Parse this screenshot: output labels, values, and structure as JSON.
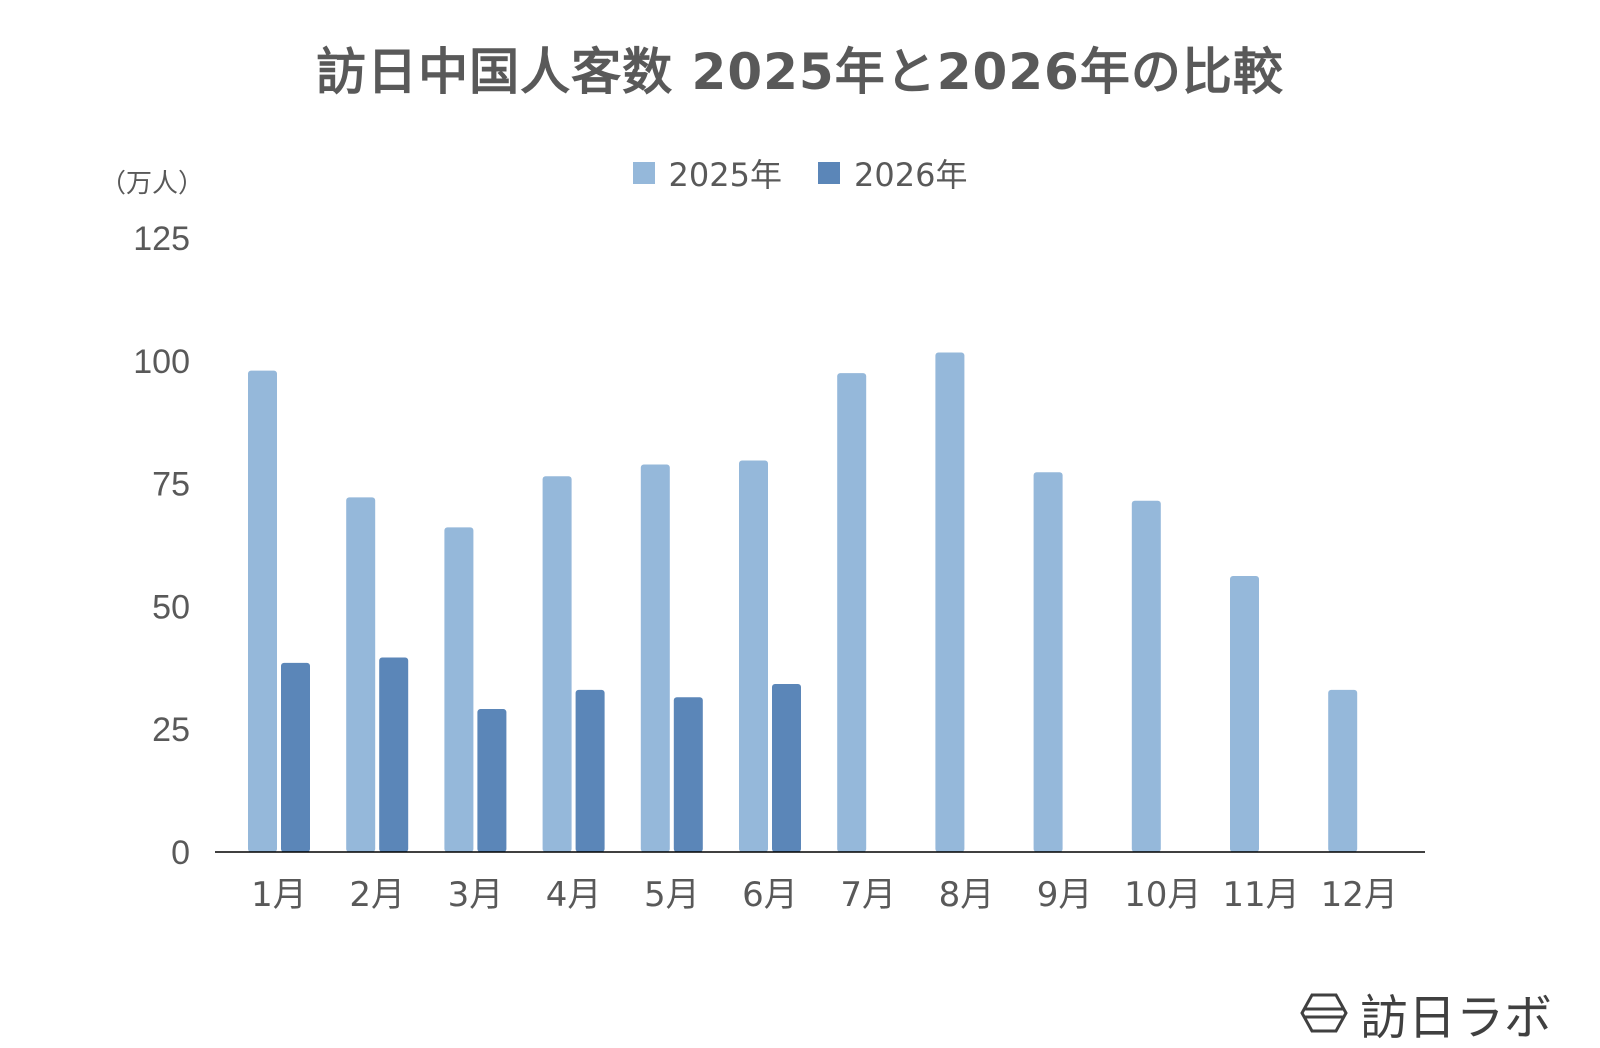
{
  "chart_data": {
    "type": "bar",
    "title": "訪日中国人客数 2025年と2026年の比較",
    "unit_label": "（万人）",
    "categories": [
      "1月",
      "2月",
      "3月",
      "4月",
      "5月",
      "6月",
      "7月",
      "8月",
      "9月",
      "10月",
      "11月",
      "12月"
    ],
    "series": [
      {
        "name": "2025年",
        "color": "#95b8da",
        "values": [
          98.0,
          72.2,
          66.1,
          76.5,
          78.9,
          79.7,
          97.5,
          101.7,
          77.3,
          71.5,
          56.2,
          33.0
        ]
      },
      {
        "name": "2026年",
        "color": "#5b86b8",
        "values": [
          38.5,
          39.6,
          29.1,
          33.0,
          31.5,
          34.2,
          null,
          null,
          null,
          null,
          null,
          null
        ]
      }
    ],
    "ylim": [
      0,
      125
    ],
    "yticks": [
      0,
      25,
      50,
      75,
      100,
      125
    ],
    "legend_position": "top",
    "grid": false
  },
  "brand": {
    "name": "訪日ラボ",
    "icon": "hexagon-logo-icon"
  }
}
